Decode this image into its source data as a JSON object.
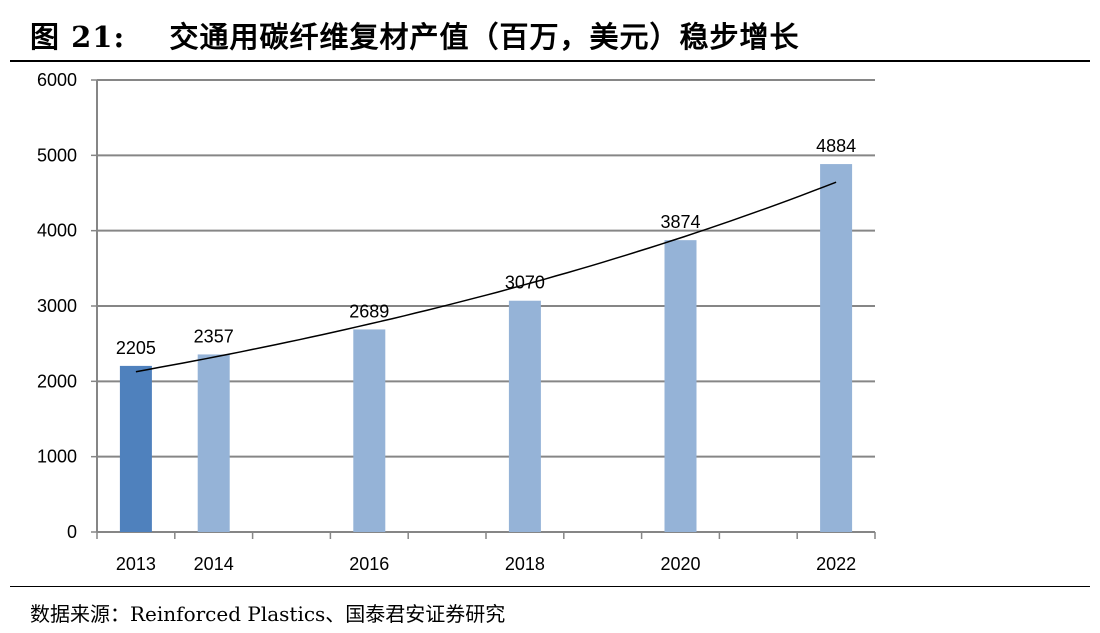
{
  "title": "图 21:    交通用碳纤维复材产值（百万，美元）稳步增长",
  "source": "数据来源：Reinforced Plastics、国泰君安证券研究",
  "chart_data": {
    "type": "bar",
    "title": "",
    "xlabel": "",
    "ylabel": "",
    "categories": [
      "2013",
      "2014",
      "",
      "2016",
      "",
      "2018",
      "",
      "2020",
      "",
      "2022"
    ],
    "values": [
      2205,
      2357,
      null,
      2689,
      null,
      3070,
      null,
      3874,
      null,
      4884
    ],
    "data_labels": [
      "2205",
      "2357",
      "",
      "2689",
      "",
      "3070",
      "",
      "3874",
      "",
      "4884"
    ],
    "ylim": [
      0,
      6000
    ],
    "yticks": [
      0,
      1000,
      2000,
      3000,
      4000,
      5000,
      6000
    ],
    "grid": true,
    "legend": "none",
    "trendline": "exponential",
    "colors": {
      "highlight": "#4F81BD",
      "bar": "#95B3D7",
      "grid": "#868686",
      "trend": "#000000"
    },
    "highlight_index": 0
  }
}
